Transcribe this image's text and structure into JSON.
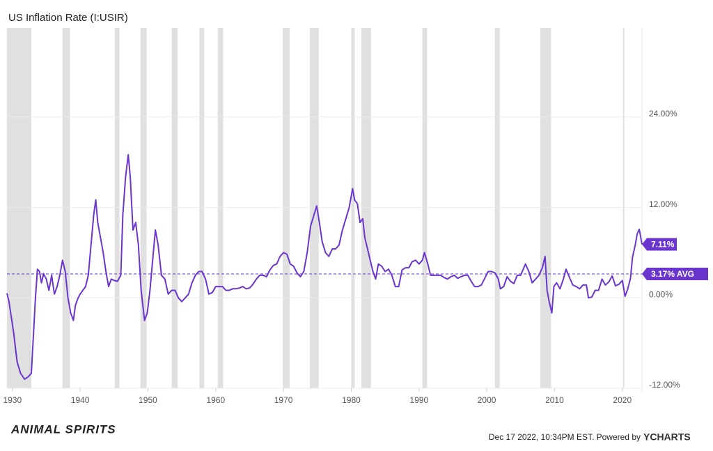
{
  "chart_data": {
    "type": "line",
    "title": "US Inflation Rate (I:USIR)",
    "color": "#6a35cc",
    "x": [
      1929.2,
      1929.5,
      1930.2,
      1930.7,
      1931.2,
      1931.8,
      1932.3,
      1932.8,
      1933.1,
      1933.4,
      1933.7,
      1934.0,
      1934.3,
      1934.6,
      1935.0,
      1935.4,
      1935.8,
      1936.2,
      1936.6,
      1937.0,
      1937.4,
      1937.8,
      1938.2,
      1938.6,
      1939.0,
      1939.3,
      1939.7,
      1940.0,
      1940.4,
      1940.8,
      1941.2,
      1941.6,
      1942.0,
      1942.3,
      1942.6,
      1943.0,
      1943.4,
      1943.8,
      1944.2,
      1944.6,
      1945.0,
      1945.5,
      1946.0,
      1946.3,
      1946.7,
      1947.1,
      1947.4,
      1947.8,
      1948.2,
      1948.6,
      1949.0,
      1949.5,
      1949.9,
      1950.3,
      1950.8,
      1951.1,
      1951.5,
      1952.0,
      1952.5,
      1953.0,
      1953.5,
      1954.0,
      1954.5,
      1955.0,
      1955.5,
      1956.0,
      1956.5,
      1957.0,
      1957.5,
      1958.0,
      1958.5,
      1959.0,
      1959.5,
      1960.0,
      1960.5,
      1961.0,
      1961.5,
      1962.0,
      1962.5,
      1963.0,
      1963.5,
      1964.0,
      1964.5,
      1965.0,
      1965.5,
      1966.0,
      1966.5,
      1967.0,
      1967.5,
      1968.0,
      1968.5,
      1969.0,
      1969.5,
      1970.0,
      1970.5,
      1971.0,
      1971.5,
      1972.0,
      1972.5,
      1973.0,
      1973.5,
      1974.0,
      1974.5,
      1974.9,
      1975.3,
      1975.7,
      1976.2,
      1976.7,
      1977.2,
      1977.7,
      1978.2,
      1978.7,
      1979.2,
      1979.7,
      1980.2,
      1980.5,
      1980.9,
      1981.3,
      1981.7,
      1982.0,
      1982.4,
      1982.8,
      1983.2,
      1983.6,
      1984.0,
      1984.5,
      1985.0,
      1985.5,
      1986.0,
      1986.5,
      1987.0,
      1987.5,
      1988.0,
      1988.5,
      1989.0,
      1989.5,
      1990.0,
      1990.5,
      1990.8,
      1991.3,
      1991.7,
      1992.2,
      1992.7,
      1993.2,
      1993.7,
      1994.2,
      1994.7,
      1995.2,
      1995.7,
      1996.2,
      1996.7,
      1997.2,
      1997.7,
      1998.2,
      1998.7,
      1999.2,
      1999.7,
      2000.2,
      2000.7,
      2001.2,
      2001.7,
      2002.0,
      2002.5,
      2003.0,
      2003.5,
      2004.0,
      2004.5,
      2005.0,
      2005.7,
      2006.2,
      2006.7,
      2007.2,
      2007.7,
      2008.2,
      2008.6,
      2008.9,
      2009.2,
      2009.6,
      2009.9,
      2010.3,
      2010.8,
      2011.3,
      2011.7,
      2012.2,
      2012.7,
      2013.2,
      2013.7,
      2014.2,
      2014.7,
      2015.0,
      2015.5,
      2016.0,
      2016.5,
      2017.0,
      2017.5,
      2018.0,
      2018.5,
      2019.0,
      2019.5,
      2020.0,
      2020.4,
      2020.8,
      2021.2,
      2021.5,
      2021.9,
      2022.2,
      2022.5,
      2022.9
    ],
    "values": [
      0.6,
      -0.5,
      -4.7,
      -8.5,
      -10,
      -10.8,
      -10.5,
      -10,
      -5,
      0,
      3.8,
      3.5,
      2,
      3.2,
      2.5,
      1,
      3,
      0.5,
      1.5,
      3,
      5,
      3.5,
      0,
      -2,
      -3,
      -1,
      0,
      0.5,
      1,
      1.5,
      3,
      7,
      11,
      13,
      10,
      8,
      6,
      3.5,
      1.5,
      2.5,
      2.3,
      2.2,
      3,
      11,
      16,
      19,
      16,
      9,
      10,
      7,
      1,
      -3,
      -2,
      1,
      6,
      9,
      7,
      3,
      2.5,
      0.5,
      1,
      1,
      0,
      -0.5,
      0,
      0.5,
      2,
      3,
      3.5,
      3.5,
      2.5,
      0.5,
      0.7,
      1.5,
      1.5,
      1.5,
      1,
      1,
      1.2,
      1.2,
      1.3,
      1.5,
      1.2,
      1.3,
      1.8,
      2.5,
      3,
      3,
      2.8,
      3.7,
      4.3,
      4.5,
      5.5,
      6,
      5.8,
      4.5,
      4.2,
      3.3,
      2.8,
      3.5,
      6,
      9.5,
      11,
      12.2,
      10,
      7.5,
      6,
      5.5,
      6.5,
      6.5,
      7,
      9,
      10.5,
      12,
      14.5,
      13,
      12.5,
      10,
      10.5,
      8,
      6.5,
      5,
      3.5,
      2.5,
      4.5,
      4.2,
      3.5,
      3.8,
      3,
      1.5,
      1.5,
      3.7,
      4,
      4,
      4.8,
      5,
      4.5,
      5,
      6,
      4.5,
      3,
      3,
      3,
      3,
      2.7,
      2.5,
      2.8,
      3,
      2.6,
      2.8,
      3,
      3,
      2.2,
      1.5,
      1.5,
      1.7,
      2.6,
      3.5,
      3.5,
      3.3,
      2.5,
      1.2,
      1.5,
      2.8,
      2.2,
      1.9,
      3,
      3,
      4.5,
      3.5,
      2,
      2.5,
      3,
      4,
      5.5,
      1,
      -0.5,
      -2,
      1.5,
      2,
      1.2,
      2.5,
      3.8,
      2.7,
      1.7,
      1.5,
      1.2,
      1.7,
      1.7,
      0,
      0.1,
      1,
      1,
      2.5,
      1.7,
      2.1,
      2.9,
      1.6,
      1.8,
      2.3,
      0.2,
      1.2,
      2.6,
      5.4,
      7,
      8.5,
      9.1,
      7.11
    ],
    "last_label": "7.11%",
    "average": 3.17,
    "average_label": "3.17% AVG",
    "recessions": [
      [
        1929.2,
        1932.8
      ],
      [
        1937.4,
        1938.5
      ],
      [
        1945.1,
        1945.8
      ],
      [
        1948.9,
        1949.8
      ],
      [
        1953.5,
        1954.4
      ],
      [
        1957.6,
        1958.3
      ],
      [
        1960.3,
        1961.1
      ],
      [
        1969.9,
        1970.9
      ],
      [
        1973.9,
        1975.2
      ],
      [
        1980.0,
        1980.5
      ],
      [
        1981.5,
        1982.9
      ],
      [
        1990.5,
        1991.2
      ],
      [
        2001.2,
        2001.9
      ],
      [
        2007.9,
        2009.5
      ],
      [
        2020.1,
        2020.3
      ]
    ],
    "xlim": [
      1929.2,
      2022.9
    ],
    "xticks": [
      1930,
      1940,
      1950,
      1960,
      1970,
      1980,
      1990,
      2000,
      2010,
      2020
    ],
    "ylim": [
      -12,
      35
    ],
    "yticks": [
      {
        "value": -12,
        "label": "-12.00%"
      },
      {
        "value": 0,
        "label": "0.00%"
      },
      {
        "value": 12,
        "label": "12.00%"
      },
      {
        "value": 24,
        "label": "24.00%"
      }
    ],
    "grid": true
  },
  "footer": {
    "brand": "ANIMAL SPIRITS",
    "credit": "Dec 17 2022, 10:34PM EST. Powered by",
    "logo": "YCHARTS"
  }
}
